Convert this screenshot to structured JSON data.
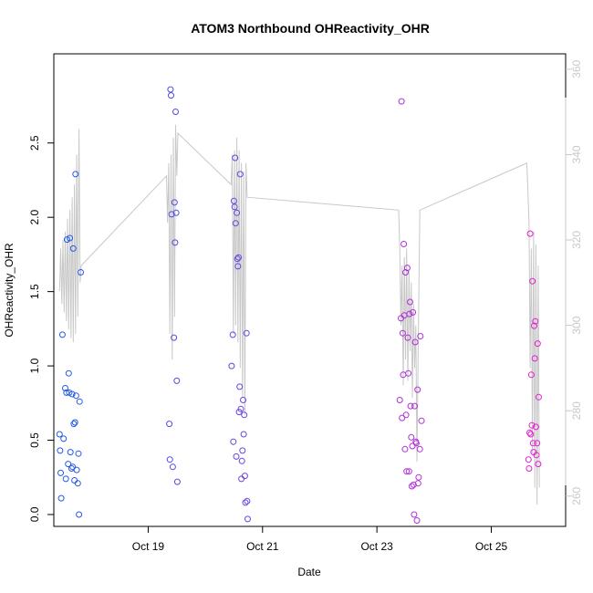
{
  "chart_data": {
    "type": "scatter",
    "title": "ATOM3 Northbound OHReactivity_OHR",
    "xlabel": "Date",
    "ylabel": "OHReactivity_OHR",
    "x_unit": "days since Oct 17 00:00",
    "xlim": [
      17.35,
      26.3
    ],
    "ylim": [
      -0.08,
      3.1
    ],
    "y2lim": [
      252.9,
      363.6
    ],
    "x_ticks": [
      {
        "value": 19,
        "label": "Oct 19"
      },
      {
        "value": 21,
        "label": "Oct 21"
      },
      {
        "value": 23,
        "label": "Oct 23"
      },
      {
        "value": 25,
        "label": "Oct 25"
      }
    ],
    "y_ticks": [
      {
        "value": 0.0,
        "label": "0.0"
      },
      {
        "value": 0.5,
        "label": "0.5"
      },
      {
        "value": 1.0,
        "label": "1.0"
      },
      {
        "value": 1.5,
        "label": "1.5"
      },
      {
        "value": 2.0,
        "label": "2.0"
      },
      {
        "value": 2.5,
        "label": "2.5"
      }
    ],
    "y2_ticks": [
      {
        "value": 260,
        "label": "260"
      },
      {
        "value": 280,
        "label": "280"
      },
      {
        "value": 300,
        "label": "300"
      },
      {
        "value": 320,
        "label": "320"
      },
      {
        "value": 340,
        "label": "340"
      },
      {
        "value": 360,
        "label": "360"
      }
    ],
    "colors": {
      "background": "#ffffff",
      "axis": "#000000",
      "secondary_axis": "#c8c8c8",
      "line": "#c8c8c8",
      "point_start": "#1f5ce6",
      "point_end": "#e61fd2"
    },
    "series": [
      {
        "name": "OHReactivity_OHR",
        "kind": "points",
        "axis": "left",
        "points": [
          {
            "x": 17.45,
            "y": 0.54
          },
          {
            "x": 17.46,
            "y": 0.43
          },
          {
            "x": 17.47,
            "y": 0.28
          },
          {
            "x": 17.48,
            "y": 0.11
          },
          {
            "x": 17.5,
            "y": 1.21
          },
          {
            "x": 17.52,
            "y": 0.51
          },
          {
            "x": 17.55,
            "y": 0.85
          },
          {
            "x": 17.56,
            "y": 0.24
          },
          {
            "x": 17.57,
            "y": 0.82
          },
          {
            "x": 17.58,
            "y": 1.85
          },
          {
            "x": 17.6,
            "y": 0.34
          },
          {
            "x": 17.61,
            "y": 0.95
          },
          {
            "x": 17.62,
            "y": 0.82
          },
          {
            "x": 17.63,
            "y": 1.86
          },
          {
            "x": 17.64,
            "y": 0.42
          },
          {
            "x": 17.66,
            "y": 0.31
          },
          {
            "x": 17.67,
            "y": 0.81
          },
          {
            "x": 17.68,
            "y": 0.32
          },
          {
            "x": 17.69,
            "y": 1.79
          },
          {
            "x": 17.7,
            "y": 0.61
          },
          {
            "x": 17.71,
            "y": 0.23
          },
          {
            "x": 17.72,
            "y": 0.62
          },
          {
            "x": 17.73,
            "y": 2.29
          },
          {
            "x": 17.74,
            "y": 0.8
          },
          {
            "x": 17.75,
            "y": 0.3
          },
          {
            "x": 17.77,
            "y": 0.21
          },
          {
            "x": 17.78,
            "y": 0.41
          },
          {
            "x": 17.79,
            "y": 0.0
          },
          {
            "x": 17.8,
            "y": 0.76
          },
          {
            "x": 17.82,
            "y": 1.63
          },
          {
            "x": 19.37,
            "y": 0.61
          },
          {
            "x": 19.38,
            "y": 0.37
          },
          {
            "x": 19.39,
            "y": 2.86
          },
          {
            "x": 19.4,
            "y": 2.82
          },
          {
            "x": 19.41,
            "y": 2.02
          },
          {
            "x": 19.43,
            "y": 0.32
          },
          {
            "x": 19.45,
            "y": 1.19
          },
          {
            "x": 19.46,
            "y": 2.1
          },
          {
            "x": 19.47,
            "y": 1.83
          },
          {
            "x": 19.48,
            "y": 2.71
          },
          {
            "x": 19.49,
            "y": 2.03
          },
          {
            "x": 19.5,
            "y": 0.9
          },
          {
            "x": 19.51,
            "y": 0.22
          },
          {
            "x": 20.46,
            "y": 1.0
          },
          {
            "x": 20.48,
            "y": 1.21
          },
          {
            "x": 20.49,
            "y": 0.49
          },
          {
            "x": 20.5,
            "y": 2.11
          },
          {
            "x": 20.51,
            "y": 2.07
          },
          {
            "x": 20.52,
            "y": 2.4
          },
          {
            "x": 20.53,
            "y": 1.96
          },
          {
            "x": 20.54,
            "y": 0.39
          },
          {
            "x": 20.55,
            "y": 2.03
          },
          {
            "x": 20.56,
            "y": 1.72
          },
          {
            "x": 20.57,
            "y": 1.67
          },
          {
            "x": 20.58,
            "y": 1.73
          },
          {
            "x": 20.59,
            "y": 0.69
          },
          {
            "x": 20.6,
            "y": 0.86
          },
          {
            "x": 20.61,
            "y": 2.29
          },
          {
            "x": 20.62,
            "y": 0.71
          },
          {
            "x": 20.63,
            "y": 0.24
          },
          {
            "x": 20.64,
            "y": 0.36
          },
          {
            "x": 20.65,
            "y": 0.43
          },
          {
            "x": 20.66,
            "y": 0.77
          },
          {
            "x": 20.67,
            "y": 0.54
          },
          {
            "x": 20.68,
            "y": 0.67
          },
          {
            "x": 20.69,
            "y": 0.26
          },
          {
            "x": 20.7,
            "y": 0.08
          },
          {
            "x": 20.72,
            "y": 1.22
          },
          {
            "x": 20.73,
            "y": 0.09
          },
          {
            "x": 20.74,
            "y": -0.03
          },
          {
            "x": 23.4,
            "y": 0.77
          },
          {
            "x": 23.42,
            "y": 1.32
          },
          {
            "x": 23.43,
            "y": 2.78
          },
          {
            "x": 23.44,
            "y": 0.65
          },
          {
            "x": 23.45,
            "y": 1.22
          },
          {
            "x": 23.46,
            "y": 0.94
          },
          {
            "x": 23.47,
            "y": 1.82
          },
          {
            "x": 23.48,
            "y": 1.34
          },
          {
            "x": 23.49,
            "y": 0.44
          },
          {
            "x": 23.5,
            "y": 1.63
          },
          {
            "x": 23.51,
            "y": 0.67
          },
          {
            "x": 23.52,
            "y": 0.29
          },
          {
            "x": 23.53,
            "y": 1.66
          },
          {
            "x": 23.54,
            "y": 1.19
          },
          {
            "x": 23.55,
            "y": 0.95
          },
          {
            "x": 23.56,
            "y": 0.29
          },
          {
            "x": 23.57,
            "y": 1.35
          },
          {
            "x": 23.58,
            "y": 1.43
          },
          {
            "x": 23.59,
            "y": 0.73
          },
          {
            "x": 23.6,
            "y": 0.52
          },
          {
            "x": 23.61,
            "y": 0.19
          },
          {
            "x": 23.62,
            "y": 0.46
          },
          {
            "x": 23.63,
            "y": 1.36
          },
          {
            "x": 23.64,
            "y": 0.2
          },
          {
            "x": 23.65,
            "y": 0.0
          },
          {
            "x": 23.66,
            "y": 0.73
          },
          {
            "x": 23.67,
            "y": 1.16
          },
          {
            "x": 23.68,
            "y": 0.49
          },
          {
            "x": 23.69,
            "y": 0.48
          },
          {
            "x": 23.7,
            "y": -0.04
          },
          {
            "x": 23.71,
            "y": 0.84
          },
          {
            "x": 23.72,
            "y": 0.21
          },
          {
            "x": 23.73,
            "y": 0.25
          },
          {
            "x": 23.75,
            "y": 0.44
          },
          {
            "x": 23.76,
            "y": 1.2
          },
          {
            "x": 23.78,
            "y": 0.63
          },
          {
            "x": 25.65,
            "y": 0.37
          },
          {
            "x": 25.66,
            "y": 0.31
          },
          {
            "x": 25.67,
            "y": 0.55
          },
          {
            "x": 25.68,
            "y": 1.89
          },
          {
            "x": 25.69,
            "y": 0.54
          },
          {
            "x": 25.7,
            "y": 0.94
          },
          {
            "x": 25.71,
            "y": 0.6
          },
          {
            "x": 25.72,
            "y": 1.57
          },
          {
            "x": 25.73,
            "y": 0.48
          },
          {
            "x": 25.74,
            "y": 0.42
          },
          {
            "x": 25.75,
            "y": 1.27
          },
          {
            "x": 25.76,
            "y": 1.05
          },
          {
            "x": 25.77,
            "y": 1.3
          },
          {
            "x": 25.78,
            "y": 0.59
          },
          {
            "x": 25.79,
            "y": 0.4
          },
          {
            "x": 25.8,
            "y": 0.48
          },
          {
            "x": 25.81,
            "y": 1.15
          },
          {
            "x": 25.82,
            "y": 0.34
          },
          {
            "x": 25.83,
            "y": 0.79
          }
        ]
      },
      {
        "name": "secondary (right axis)",
        "kind": "line",
        "axis": "right",
        "points": [
          {
            "x": 17.45,
            "y": 308
          },
          {
            "x": 17.47,
            "y": 318
          },
          {
            "x": 17.49,
            "y": 305
          },
          {
            "x": 17.51,
            "y": 320
          },
          {
            "x": 17.53,
            "y": 303
          },
          {
            "x": 17.55,
            "y": 322
          },
          {
            "x": 17.57,
            "y": 301
          },
          {
            "x": 17.59,
            "y": 325
          },
          {
            "x": 17.61,
            "y": 299
          },
          {
            "x": 17.63,
            "y": 327
          },
          {
            "x": 17.65,
            "y": 297
          },
          {
            "x": 17.67,
            "y": 330
          },
          {
            "x": 17.69,
            "y": 296
          },
          {
            "x": 17.71,
            "y": 333
          },
          {
            "x": 17.73,
            "y": 298
          },
          {
            "x": 17.75,
            "y": 340
          },
          {
            "x": 17.77,
            "y": 302
          },
          {
            "x": 17.79,
            "y": 346
          },
          {
            "x": 17.81,
            "y": 310
          },
          {
            "x": 17.83,
            "y": 314
          },
          {
            "x": 19.32,
            "y": 335
          },
          {
            "x": 19.34,
            "y": 324
          },
          {
            "x": 19.36,
            "y": 338
          },
          {
            "x": 19.38,
            "y": 298
          },
          {
            "x": 19.4,
            "y": 340
          },
          {
            "x": 19.42,
            "y": 292
          },
          {
            "x": 19.44,
            "y": 344
          },
          {
            "x": 19.46,
            "y": 302
          },
          {
            "x": 19.48,
            "y": 347
          },
          {
            "x": 19.5,
            "y": 335
          },
          {
            "x": 19.52,
            "y": 345
          },
          {
            "x": 20.45,
            "y": 333
          },
          {
            "x": 20.47,
            "y": 340
          },
          {
            "x": 20.49,
            "y": 298
          },
          {
            "x": 20.51,
            "y": 341
          },
          {
            "x": 20.53,
            "y": 300
          },
          {
            "x": 20.55,
            "y": 344
          },
          {
            "x": 20.57,
            "y": 296
          },
          {
            "x": 20.59,
            "y": 341
          },
          {
            "x": 20.61,
            "y": 290
          },
          {
            "x": 20.63,
            "y": 338
          },
          {
            "x": 20.65,
            "y": 283
          },
          {
            "x": 20.67,
            "y": 336
          },
          {
            "x": 20.69,
            "y": 279
          },
          {
            "x": 20.71,
            "y": 338
          },
          {
            "x": 20.73,
            "y": 330
          },
          {
            "x": 23.38,
            "y": 327
          },
          {
            "x": 23.4,
            "y": 318
          },
          {
            "x": 23.42,
            "y": 300
          },
          {
            "x": 23.44,
            "y": 314
          },
          {
            "x": 23.46,
            "y": 286
          },
          {
            "x": 23.48,
            "y": 316
          },
          {
            "x": 23.5,
            "y": 292
          },
          {
            "x": 23.52,
            "y": 318
          },
          {
            "x": 23.54,
            "y": 287
          },
          {
            "x": 23.56,
            "y": 313
          },
          {
            "x": 23.58,
            "y": 294
          },
          {
            "x": 23.6,
            "y": 310
          },
          {
            "x": 23.62,
            "y": 283
          },
          {
            "x": 23.64,
            "y": 305
          },
          {
            "x": 23.66,
            "y": 290
          },
          {
            "x": 23.68,
            "y": 300
          },
          {
            "x": 23.7,
            "y": 268
          },
          {
            "x": 23.72,
            "y": 293
          },
          {
            "x": 23.75,
            "y": 327
          },
          {
            "x": 25.62,
            "y": 338
          },
          {
            "x": 25.64,
            "y": 332
          },
          {
            "x": 25.66,
            "y": 324
          },
          {
            "x": 25.68,
            "y": 290
          },
          {
            "x": 25.7,
            "y": 318
          },
          {
            "x": 25.72,
            "y": 270
          },
          {
            "x": 25.74,
            "y": 322
          },
          {
            "x": 25.76,
            "y": 262
          },
          {
            "x": 25.78,
            "y": 319
          },
          {
            "x": 25.8,
            "y": 258
          },
          {
            "x": 25.82,
            "y": 314
          },
          {
            "x": 25.84,
            "y": 262
          }
        ]
      }
    ]
  }
}
